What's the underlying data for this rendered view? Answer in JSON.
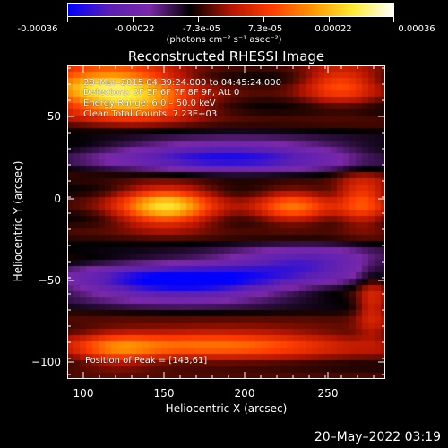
{
  "colorbar": {
    "tick_labels": [
      "-0.00036",
      "-0.00022",
      "-7.3e-05",
      "7.3e-05",
      "0.00022",
      "0.00036"
    ],
    "units": "(photons cm⁻² s⁻¹ asec⁻²)"
  },
  "title": "Reconstructed RHESSI Image",
  "annotations": {
    "time": "28–Mar–2015 04:39:24.000 to 04:45:24.000",
    "detectors": "Detectors: 3F 5F 6F 7F 8F 9F, Att 0",
    "energy": "Energy Range: 6.0 – 50.0 keV",
    "counts": "Clean Total Counts: 7.23E+03",
    "peak": "Position of Peak = [143,61]"
  },
  "axes": {
    "xlabel": "Heliocentric X (arcsec)",
    "ylabel": "Heliocentric Y (arcsec)",
    "xticks": [
      "100",
      "150",
      "200",
      "250"
    ],
    "yticks": [
      "50",
      "0",
      "−50",
      "−100"
    ],
    "xlim": [
      90,
      282
    ],
    "ylim": [
      -112,
      80
    ]
  },
  "datestamp": "20–May–2022 03:19",
  "colormap": {
    "name": "blue-purple-red-yellow-white",
    "stops": [
      "#0000ff",
      "#5a1fb4",
      "#7a28a8",
      "#000000",
      "#b41400",
      "#ff3c00",
      "#ff9600",
      "#ffeb32",
      "#ffffff"
    ]
  }
}
